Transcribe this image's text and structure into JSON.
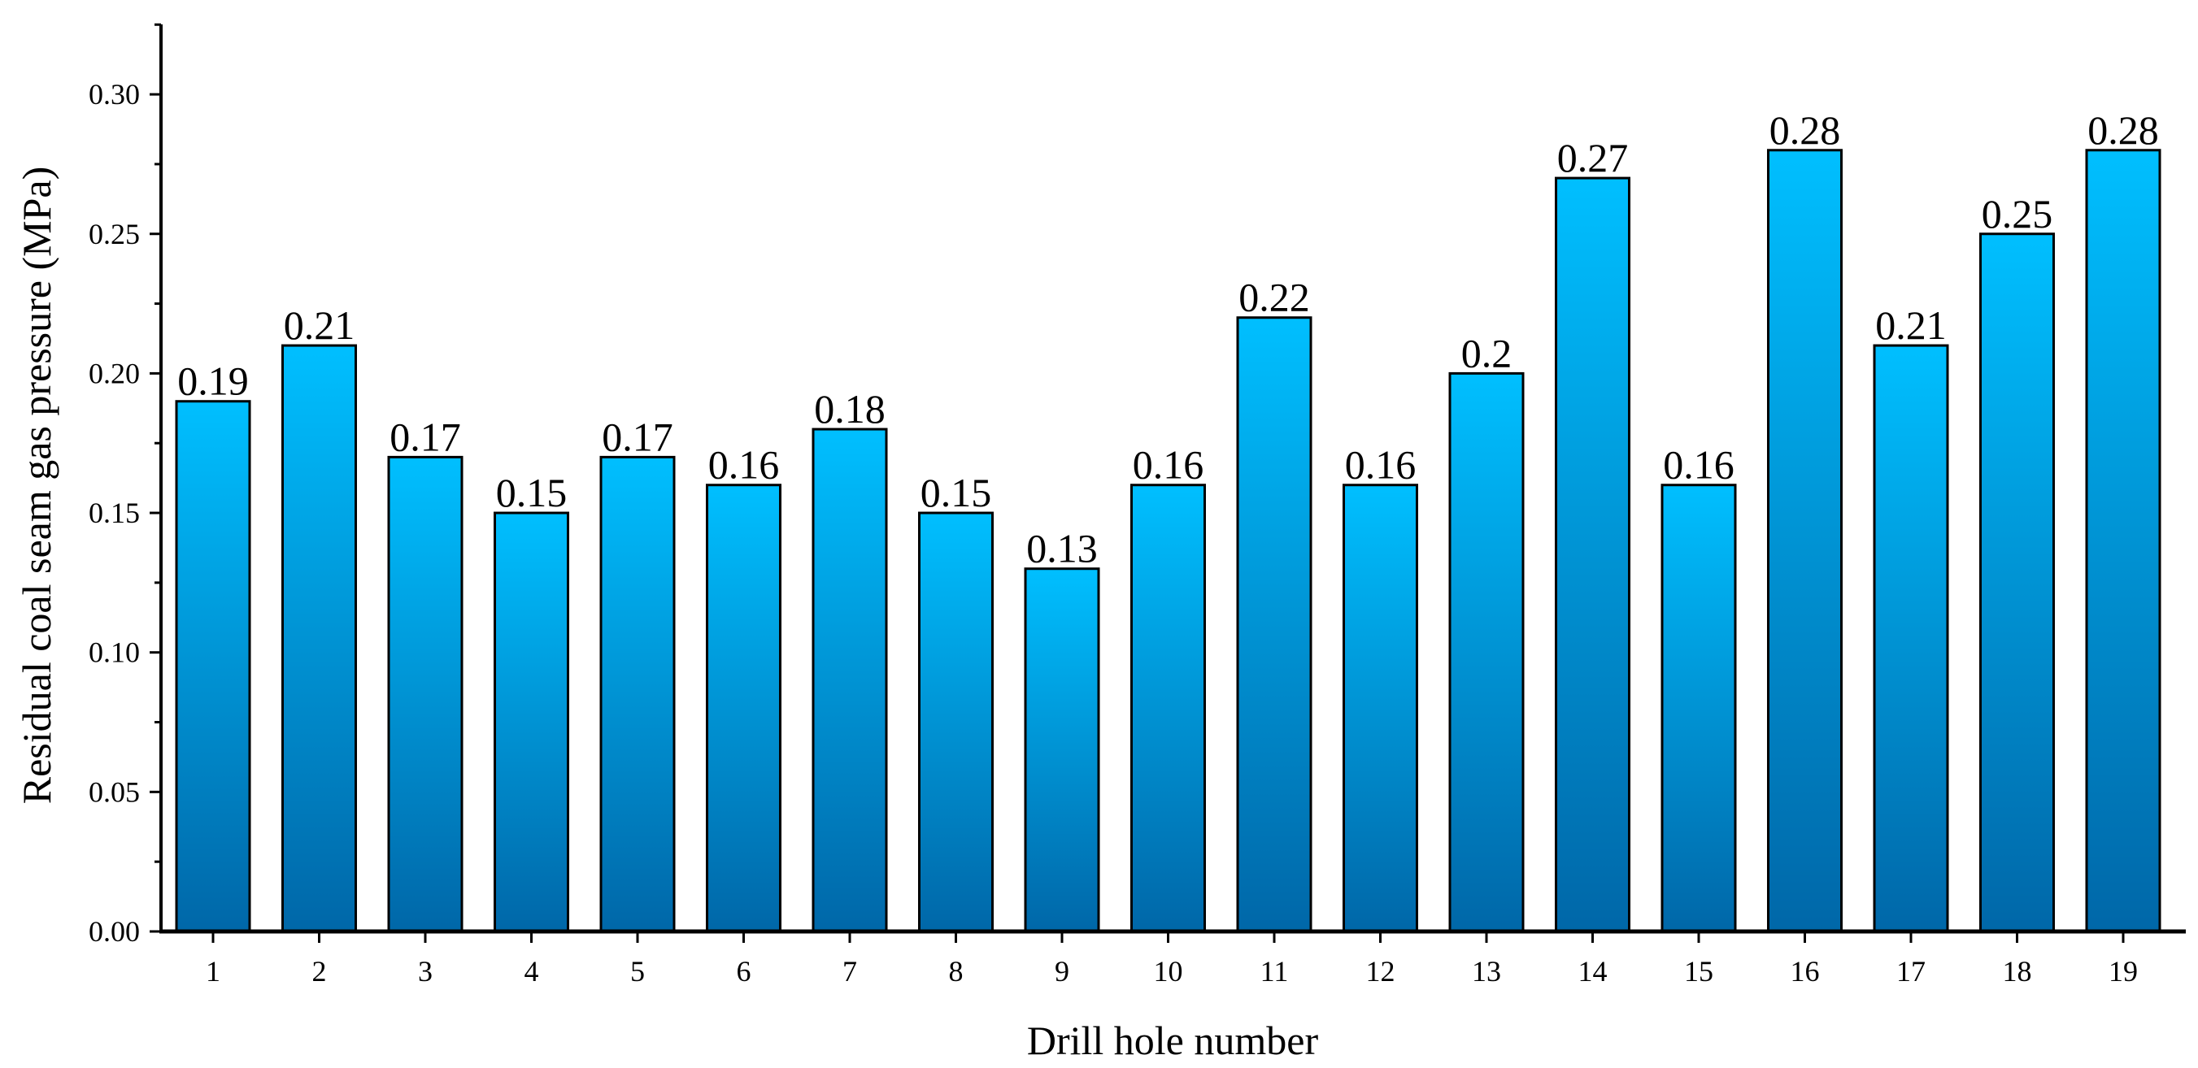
{
  "chart_data": {
    "type": "bar",
    "title": "",
    "xlabel": "Drill hole number",
    "ylabel": "Residual coal seam gas pressure (MPa)",
    "categories": [
      "1",
      "2",
      "3",
      "4",
      "5",
      "6",
      "7",
      "8",
      "9",
      "10",
      "11",
      "12",
      "13",
      "14",
      "15",
      "16",
      "17",
      "18",
      "19"
    ],
    "values": [
      0.19,
      0.21,
      0.17,
      0.15,
      0.17,
      0.16,
      0.18,
      0.15,
      0.13,
      0.16,
      0.22,
      0.16,
      0.2,
      0.27,
      0.16,
      0.28,
      0.21,
      0.25,
      0.28
    ],
    "data_labels": [
      "0.19",
      "0.21",
      "0.17",
      "0.15",
      "0.17",
      "0.16",
      "0.18",
      "0.15",
      "0.13",
      "0.16",
      "0.22",
      "0.16",
      "0.2",
      "0.27",
      "0.16",
      "0.28",
      "0.21",
      "0.25",
      "0.28"
    ],
    "yticks": [
      "0.00",
      "0.05",
      "0.10",
      "0.15",
      "0.20",
      "0.25",
      "0.30"
    ],
    "ylim": [
      0,
      0.325
    ],
    "grid": false,
    "legend": "none",
    "colors": {
      "bar_top": "#00BFFF",
      "bar_bottom": "#0067A8",
      "bar_outline": "#000000",
      "axis": "#000000"
    }
  }
}
